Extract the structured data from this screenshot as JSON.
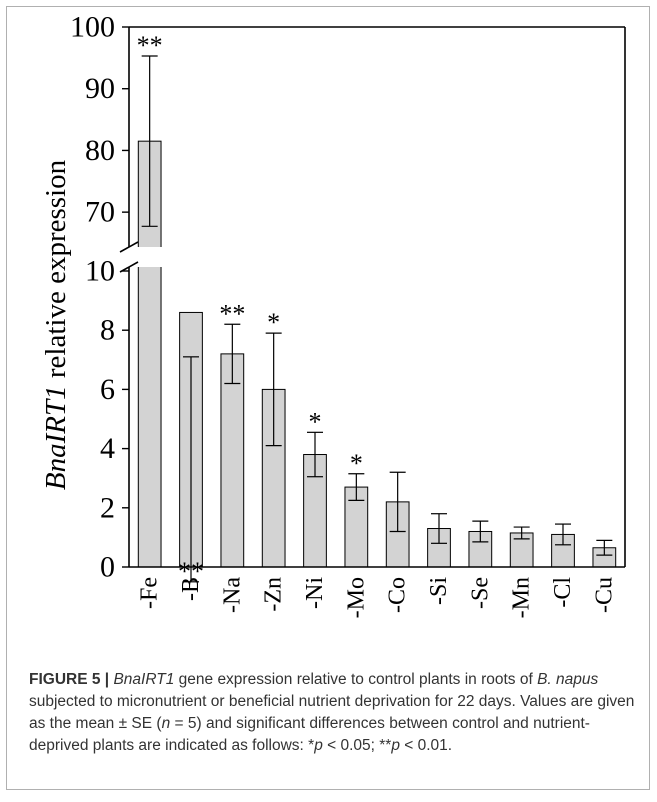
{
  "chart_data": {
    "type": "bar",
    "categories": [
      "-Fe",
      "-B",
      "-Na",
      "-Zn",
      "-Ni",
      "-Mo",
      "-Co",
      "-Si",
      "-Se",
      "-Mn",
      "-Cl",
      "-Cu"
    ],
    "values": [
      81.5,
      8.6,
      7.2,
      6.0,
      3.8,
      2.7,
      2.2,
      1.3,
      1.2,
      1.15,
      1.1,
      0.65
    ],
    "errors": [
      13.8,
      1.5,
      1.0,
      1.9,
      0.75,
      0.45,
      1.0,
      0.5,
      0.35,
      0.2,
      0.35,
      0.25
    ],
    "significance": [
      "**",
      "**",
      "**",
      "*",
      "*",
      "*",
      "",
      "",
      "",
      "",
      "",
      ""
    ],
    "ylabel_italic": "BnaIRT1",
    "ylabel_rest": " relative expression",
    "axis_break": true,
    "ylim_lower": [
      0,
      10
    ],
    "ylim_upper": [
      65,
      100
    ],
    "yticks_lower": [
      "0",
      "2",
      "4",
      "6",
      "8",
      "10"
    ],
    "yticks_upper": [
      "70",
      "80",
      "90",
      "100"
    ],
    "bar_color": "#d3d3d3",
    "grid": false
  },
  "caption": {
    "label": "FIGURE 5 |",
    "gene": "BnaIRT1",
    "t1": " gene expression relative to control plants in roots of",
    "species": "B. napus",
    "t2": " subjected to micronutrient or beneficial nutrient deprivation for 22 days. Values are given as the mean ± SE (",
    "n": "n",
    "t3": " = 5) and significant differences between control and nutrient-deprived plants are indicated as follows: *",
    "p1": "p",
    "t4": " < 0.05; **",
    "p2": "p",
    "t5": " < 0.01."
  }
}
